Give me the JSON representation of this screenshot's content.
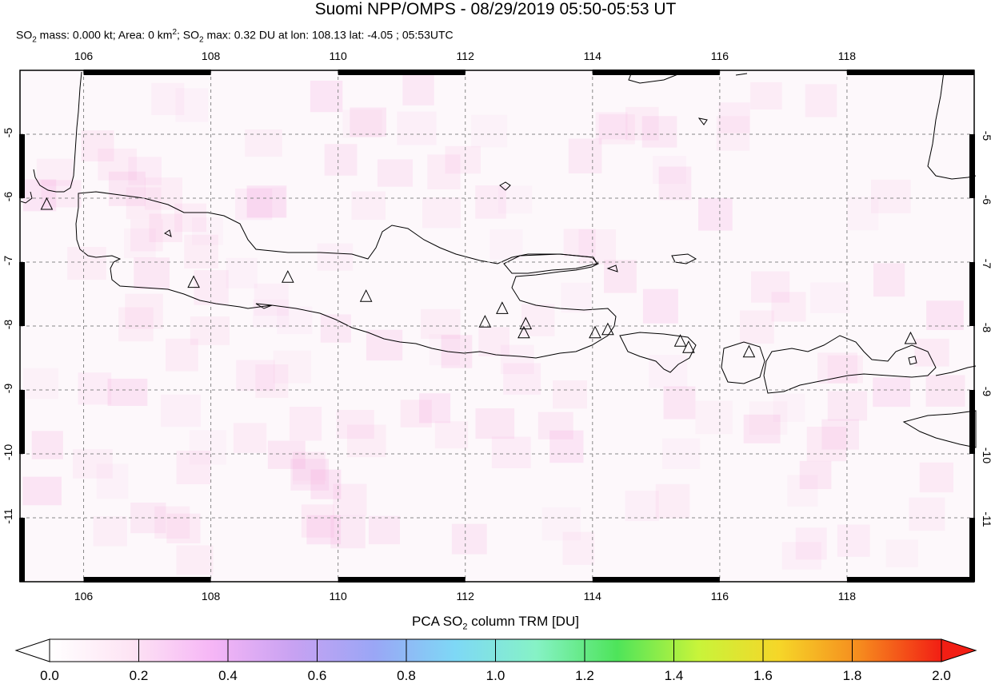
{
  "title": "Suomi NPP/OMPS - 08/29/2019 05:50-05:53 UT",
  "subtitle": {
    "p1": "SO",
    "s1": "2",
    "p2": " mass: 0.000 kt; Area: 0 km",
    "s2": "2",
    "p3": "; SO",
    "s3": "2",
    "p4": " max: 0.32 DU at lon: 108.13 lat: -4.05 ; 05:53UTC"
  },
  "map": {
    "lon_labels": [
      "106",
      "108",
      "110",
      "112",
      "114",
      "116",
      "118"
    ],
    "lat_labels": [
      "-5",
      "-6",
      "-7",
      "-8",
      "-9",
      "-10",
      "-11"
    ],
    "background": "#fdf8fb",
    "volcano_icon": "triangle-icon",
    "volcanoes": [
      {
        "lon": 105.42,
        "lat": -6.1
      },
      {
        "lon": 107.73,
        "lat": -7.32
      },
      {
        "lon": 109.21,
        "lat": -7.24
      },
      {
        "lon": 110.44,
        "lat": -7.54
      },
      {
        "lon": 112.31,
        "lat": -7.94
      },
      {
        "lon": 112.58,
        "lat": -7.73
      },
      {
        "lon": 112.95,
        "lat": -7.97
      },
      {
        "lon": 112.92,
        "lat": -8.11
      },
      {
        "lon": 114.04,
        "lat": -8.11
      },
      {
        "lon": 114.24,
        "lat": -8.06
      },
      {
        "lon": 115.38,
        "lat": -8.24
      },
      {
        "lon": 115.51,
        "lat": -8.34
      },
      {
        "lon": 116.46,
        "lat": -8.41
      },
      {
        "lon": 119.0,
        "lat": -8.2
      }
    ]
  },
  "colorbar": {
    "label": {
      "p1": "PCA SO",
      "s1": "2",
      "p2": " column TRM [DU]"
    },
    "ticks": [
      "0.0",
      "0.2",
      "0.4",
      "0.6",
      "0.8",
      "1.0",
      "1.2",
      "1.4",
      "1.6",
      "1.8",
      "2.0"
    ],
    "stops": [
      "#ffffff",
      "#fde4f4",
      "#f6b6f6",
      "#c8a2f2",
      "#9aa6f6",
      "#7ed8f6",
      "#86f2c6",
      "#4ee45a",
      "#c8f43a",
      "#f6d628",
      "#f68a1e",
      "#f21e14"
    ]
  }
}
